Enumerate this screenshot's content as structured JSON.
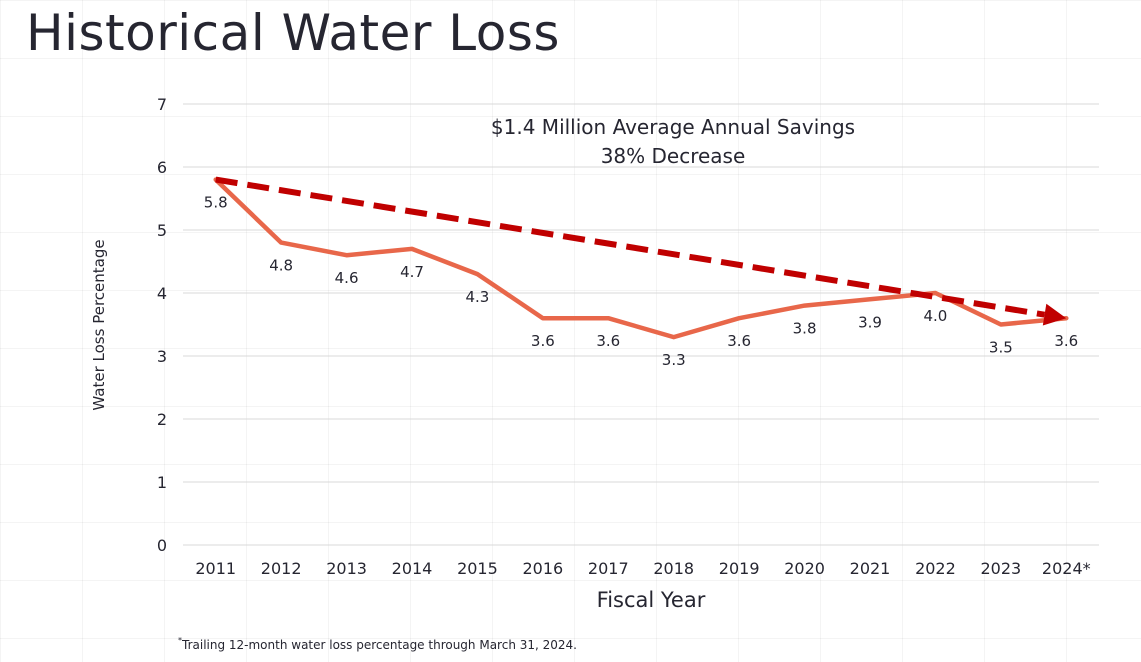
{
  "title": "Historical Water Loss",
  "chart_data": {
    "type": "line",
    "title": "Historical Water Loss",
    "xlabel": "Fiscal Year",
    "ylabel": "Water Loss Percentage",
    "categories": [
      "2011",
      "2012",
      "2013",
      "2014",
      "2015",
      "2016",
      "2017",
      "2018",
      "2019",
      "2020",
      "2021",
      "2022",
      "2023",
      "2024*"
    ],
    "series": [
      {
        "name": "Water Loss Percentage",
        "color": "#e8674a",
        "values": [
          5.8,
          4.8,
          4.6,
          4.7,
          4.3,
          3.6,
          3.6,
          3.3,
          3.6,
          3.8,
          3.9,
          4.0,
          3.5,
          3.6
        ],
        "data_labels": [
          "5.8",
          "4.8",
          "4.6",
          "4.7",
          "4.3",
          "3.6",
          "3.6",
          "3.3",
          "3.6",
          "3.8",
          "3.9",
          "4.0",
          "3.5",
          "3.6"
        ]
      }
    ],
    "trend_arrow": {
      "name": "Trend",
      "color": "#c00000",
      "style": "dashed-arrow",
      "start": {
        "category": "2011",
        "value": 5.8
      },
      "end": {
        "category": "2024*",
        "value": 3.6
      }
    },
    "yticks": [
      0,
      1,
      2,
      3,
      4,
      5,
      6,
      7
    ],
    "ylim": [
      0,
      7
    ],
    "grid": true,
    "annotations": [
      "$1.4 Million Average Annual Savings",
      "38% Decrease"
    ],
    "legend": "none"
  },
  "footnote": {
    "marker": "*",
    "text": "Trailing 12-month water loss percentage through March 31, 2024."
  }
}
